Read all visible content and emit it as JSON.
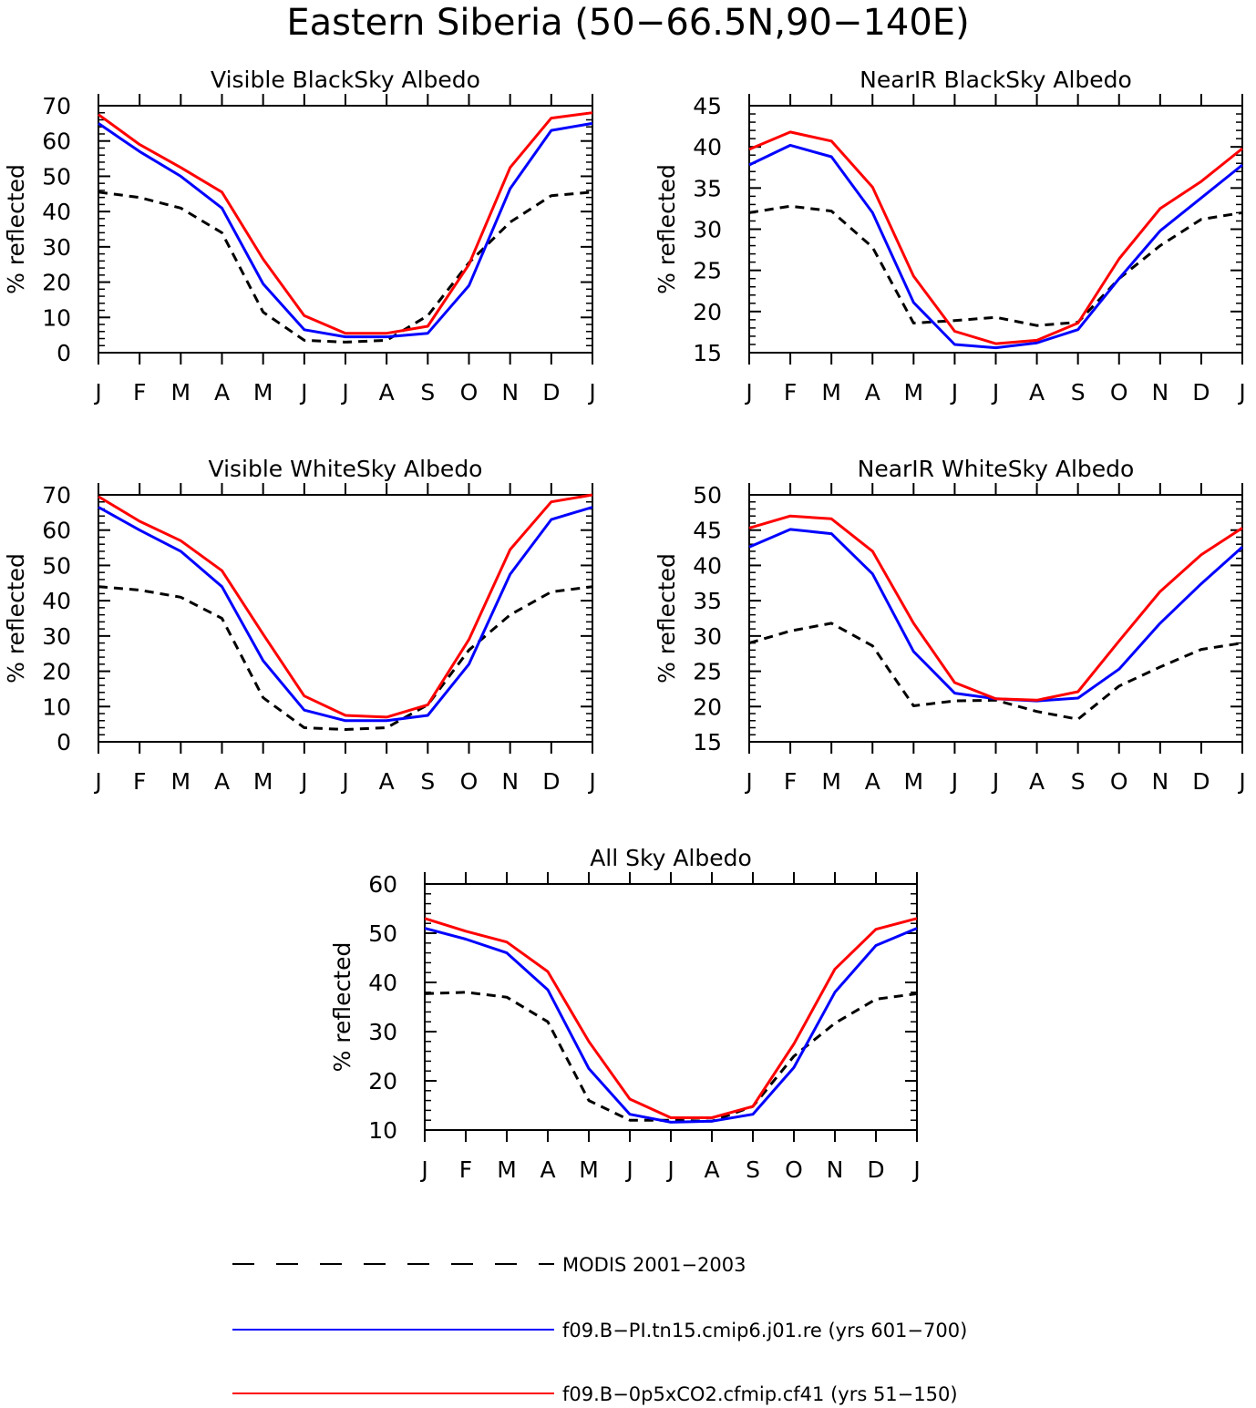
{
  "figure": {
    "title": "Eastern Siberia (50−66.5N,90−140E)"
  },
  "colors": {
    "modis": "#000000",
    "pi": "#0000ff",
    "cf41": "#ff0000"
  },
  "legend": [
    {
      "key": "modis",
      "label": "MODIS 2001−2003",
      "style": "dashed"
    },
    {
      "key": "pi",
      "label": "f09.B−PI.tn15.cmip6.j01.re (yrs 601−700)",
      "style": "solid"
    },
    {
      "key": "cf41",
      "label": "f09.B−0p5xCO2.cfmip.cf41 (yrs 51−150)",
      "style": "solid"
    }
  ],
  "chart_data": [
    {
      "type": "line",
      "title": "Visible BlackSky Albedo",
      "ylabel": "% reflected",
      "xlabel": "",
      "categories": [
        "J",
        "F",
        "M",
        "A",
        "M",
        "J",
        "J",
        "A",
        "S",
        "O",
        "N",
        "D",
        "J"
      ],
      "ylim": [
        0,
        70
      ],
      "yticks": [
        0,
        10,
        20,
        30,
        40,
        50,
        60,
        70
      ],
      "grid": false,
      "series": [
        {
          "key": "modis",
          "values": [
            45.5,
            44,
            41,
            34,
            11.5,
            3.5,
            3,
            3.5,
            10.5,
            25.5,
            37,
            44.5,
            45.5
          ]
        },
        {
          "key": "pi",
          "values": [
            65,
            57,
            50,
            41,
            19.5,
            6.5,
            4.5,
            4.5,
            5.5,
            19,
            46.5,
            63,
            65
          ]
        },
        {
          "key": "cf41",
          "values": [
            67.5,
            59,
            52.5,
            45.5,
            26.5,
            10.5,
            5.5,
            5.5,
            7.5,
            25,
            52.5,
            66.5,
            68
          ]
        }
      ]
    },
    {
      "type": "line",
      "title": "NearIR BlackSky Albedo",
      "ylabel": "% reflected",
      "xlabel": "",
      "categories": [
        "J",
        "F",
        "M",
        "A",
        "M",
        "J",
        "J",
        "A",
        "S",
        "O",
        "N",
        "D",
        "J"
      ],
      "ylim": [
        15,
        45
      ],
      "yticks": [
        15,
        20,
        25,
        30,
        35,
        40,
        45
      ],
      "grid": false,
      "series": [
        {
          "key": "modis",
          "values": [
            32,
            32.8,
            32.2,
            27.8,
            18.6,
            18.9,
            19.3,
            18.3,
            18.7,
            24,
            28,
            31.2,
            32
          ]
        },
        {
          "key": "pi",
          "values": [
            37.8,
            40.2,
            38.8,
            32,
            21.1,
            16,
            15.6,
            16.2,
            17.8,
            24,
            29.8,
            33.8,
            37.8
          ]
        },
        {
          "key": "cf41",
          "values": [
            39.7,
            41.8,
            40.7,
            35.1,
            24.3,
            17.6,
            16.1,
            16.5,
            18.6,
            26.4,
            32.5,
            35.8,
            39.8
          ]
        }
      ]
    },
    {
      "type": "line",
      "title": "Visible WhiteSky Albedo",
      "ylabel": "% reflected",
      "xlabel": "",
      "categories": [
        "J",
        "F",
        "M",
        "A",
        "M",
        "J",
        "J",
        "A",
        "S",
        "O",
        "N",
        "D",
        "J"
      ],
      "ylim": [
        0,
        70
      ],
      "yticks": [
        0,
        10,
        20,
        30,
        40,
        50,
        60,
        70
      ],
      "grid": false,
      "series": [
        {
          "key": "modis",
          "values": [
            44,
            43,
            41,
            35,
            12.5,
            4,
            3.5,
            4,
            10.5,
            26,
            36,
            42.5,
            44
          ]
        },
        {
          "key": "pi",
          "values": [
            66.5,
            60,
            54,
            44,
            23,
            9,
            6,
            6,
            7.5,
            22,
            47.5,
            63,
            66.5
          ]
        },
        {
          "key": "cf41",
          "values": [
            69.5,
            62.5,
            57,
            48.5,
            30.5,
            13,
            7.5,
            7,
            10.5,
            29,
            54.5,
            68,
            70
          ]
        }
      ]
    },
    {
      "type": "line",
      "title": "NearIR WhiteSky Albedo",
      "ylabel": "% reflected",
      "xlabel": "",
      "categories": [
        "J",
        "F",
        "M",
        "A",
        "M",
        "J",
        "J",
        "A",
        "S",
        "O",
        "N",
        "D",
        "J"
      ],
      "ylim": [
        15,
        50
      ],
      "yticks": [
        15,
        20,
        25,
        30,
        35,
        40,
        45,
        50
      ],
      "grid": false,
      "series": [
        {
          "key": "modis",
          "values": [
            29,
            30.7,
            31.8,
            28.6,
            20.1,
            20.8,
            20.9,
            19.3,
            18.2,
            22.9,
            25.6,
            28.1,
            29
          ]
        },
        {
          "key": "pi",
          "values": [
            42.6,
            45.1,
            44.5,
            38.8,
            27.8,
            21.9,
            21.1,
            20.8,
            21.2,
            25.3,
            31.8,
            37.4,
            42.6
          ]
        },
        {
          "key": "cf41",
          "values": [
            45.3,
            47,
            46.6,
            42,
            31.8,
            23.4,
            21.1,
            20.9,
            22.1,
            29.3,
            36.3,
            41.5,
            45.3
          ]
        }
      ]
    },
    {
      "type": "line",
      "title": "All Sky Albedo",
      "ylabel": "% reflected",
      "xlabel": "",
      "categories": [
        "J",
        "F",
        "M",
        "A",
        "M",
        "J",
        "J",
        "A",
        "S",
        "O",
        "N",
        "D",
        "J"
      ],
      "ylim": [
        10,
        60
      ],
      "yticks": [
        10,
        20,
        30,
        40,
        50,
        60
      ],
      "grid": false,
      "series": [
        {
          "key": "modis",
          "values": [
            37.7,
            38,
            37,
            32,
            16,
            12,
            12,
            11.8,
            14.8,
            25,
            31.7,
            36.6,
            37.7
          ]
        },
        {
          "key": "pi",
          "values": [
            51,
            48.8,
            46,
            38.5,
            22.5,
            13.2,
            11.6,
            11.8,
            13.2,
            22.7,
            38,
            47.5,
            51
          ]
        },
        {
          "key": "cf41",
          "values": [
            53,
            50.4,
            48.2,
            42.2,
            28,
            16.3,
            12.5,
            12.5,
            14.8,
            27.5,
            42.7,
            50.8,
            53
          ]
        }
      ]
    }
  ]
}
